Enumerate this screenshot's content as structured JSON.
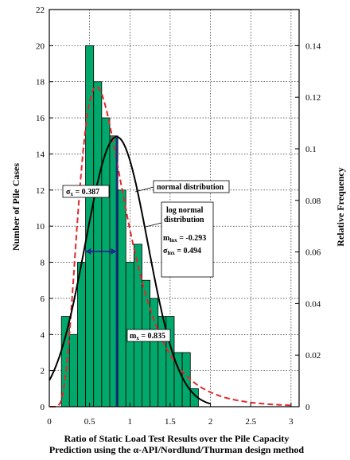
{
  "chart_data": {
    "type": "bar",
    "xlabel": "Ratio of Static Load Test Results over the Pile Capacity",
    "xlabel_line2": "Prediction using the α-API/Nordlund/Thurman design method",
    "ylabel": "Number of Pile Cases",
    "y2label": "Relative Frequency",
    "xlim": [
      0,
      3.1
    ],
    "ylim": [
      0,
      22
    ],
    "y2lim": [
      0,
      0.154
    ],
    "grid": true,
    "xticks": [
      "0",
      "0.5",
      "1",
      "1.5",
      "2",
      "2.5",
      "3"
    ],
    "yticks": [
      "0",
      "2",
      "4",
      "6",
      "8",
      "10",
      "12",
      "14",
      "16",
      "18",
      "20",
      "22"
    ],
    "y2ticks": [
      "0",
      "0.02",
      "0.04",
      "0.06",
      "0.08",
      "0.1",
      "0.12",
      "0.14"
    ],
    "bin_width": 0.1,
    "bins_start": [
      0.15,
      0.25,
      0.35,
      0.45,
      0.55,
      0.65,
      0.75,
      0.85,
      0.95,
      1.05,
      1.15,
      1.25,
      1.35,
      1.45,
      1.55,
      1.65,
      1.75
    ],
    "counts": [
      5,
      4,
      8,
      20,
      18,
      16,
      15,
      12,
      8,
      9,
      7,
      6,
      5,
      5,
      3,
      3,
      1
    ],
    "colors": {
      "bar": "#00a86b",
      "normal": "#000000",
      "lognormal": "#e0282d",
      "mean_line": "#1f2a8c",
      "sigma_arrow": "#1f2a8c"
    },
    "normal_fit": {
      "name": "normal distribution",
      "mean": 0.835,
      "sd": 0.387
    },
    "lognormal_fit": {
      "name": "log normal distribution",
      "mu_ln": -0.293,
      "sigma_ln": 0.494
    },
    "annotations": {
      "sigma_label": "σ",
      "sigma_sub": "x",
      "sigma_value": " = 0.387",
      "mean_label": "m",
      "mean_sub": "x",
      "mean_value": " = 0.835",
      "normal_label": "normal distribution",
      "lognormal_line1": "log normal",
      "lognormal_line2": "distribution",
      "mln_label": "m",
      "mln_sub": "lnx",
      "mln_value": " = -0.293",
      "sln_label": "σ",
      "sln_sub": "lnx",
      "sln_value": " = 0.494"
    }
  }
}
